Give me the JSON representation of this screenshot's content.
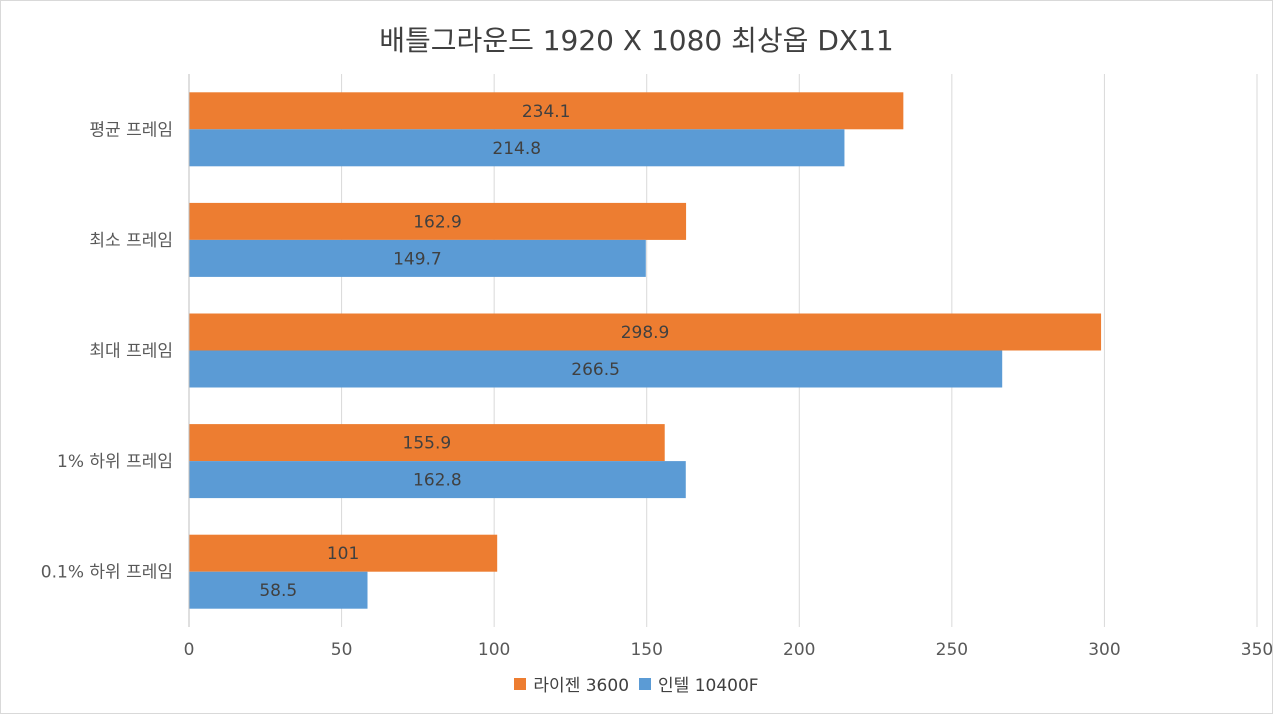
{
  "chart_data": {
    "type": "bar",
    "orientation": "horizontal",
    "title": "배틀그라운드 1920 X 1080 최상옵 DX11",
    "categories": [
      "평균 프레임",
      "최소 프레임",
      "최대 프레임",
      "1% 하위 프레임",
      "0.1% 하위 프레임"
    ],
    "series": [
      {
        "name": "라이젠 3600",
        "values": [
          234.1,
          162.9,
          298.9,
          155.9,
          101
        ],
        "labels": [
          "234.1",
          "162.9",
          "298.9",
          "155.9",
          "101"
        ],
        "color": "#ed7d31"
      },
      {
        "name": "인텔 10400F",
        "values": [
          214.8,
          149.7,
          266.5,
          162.8,
          58.5
        ],
        "labels": [
          "214.8",
          "149.7",
          "266.5",
          "162.8",
          "58.5"
        ],
        "color": "#5b9bd5"
      }
    ],
    "xlim": [
      0,
      350
    ],
    "xticks": [
      0,
      50,
      100,
      150,
      200,
      250,
      300,
      350
    ],
    "xtick_labels": [
      "0",
      "50",
      "100",
      "150",
      "200",
      "250",
      "300",
      "350"
    ],
    "grid": true,
    "legend_position": "bottom"
  }
}
